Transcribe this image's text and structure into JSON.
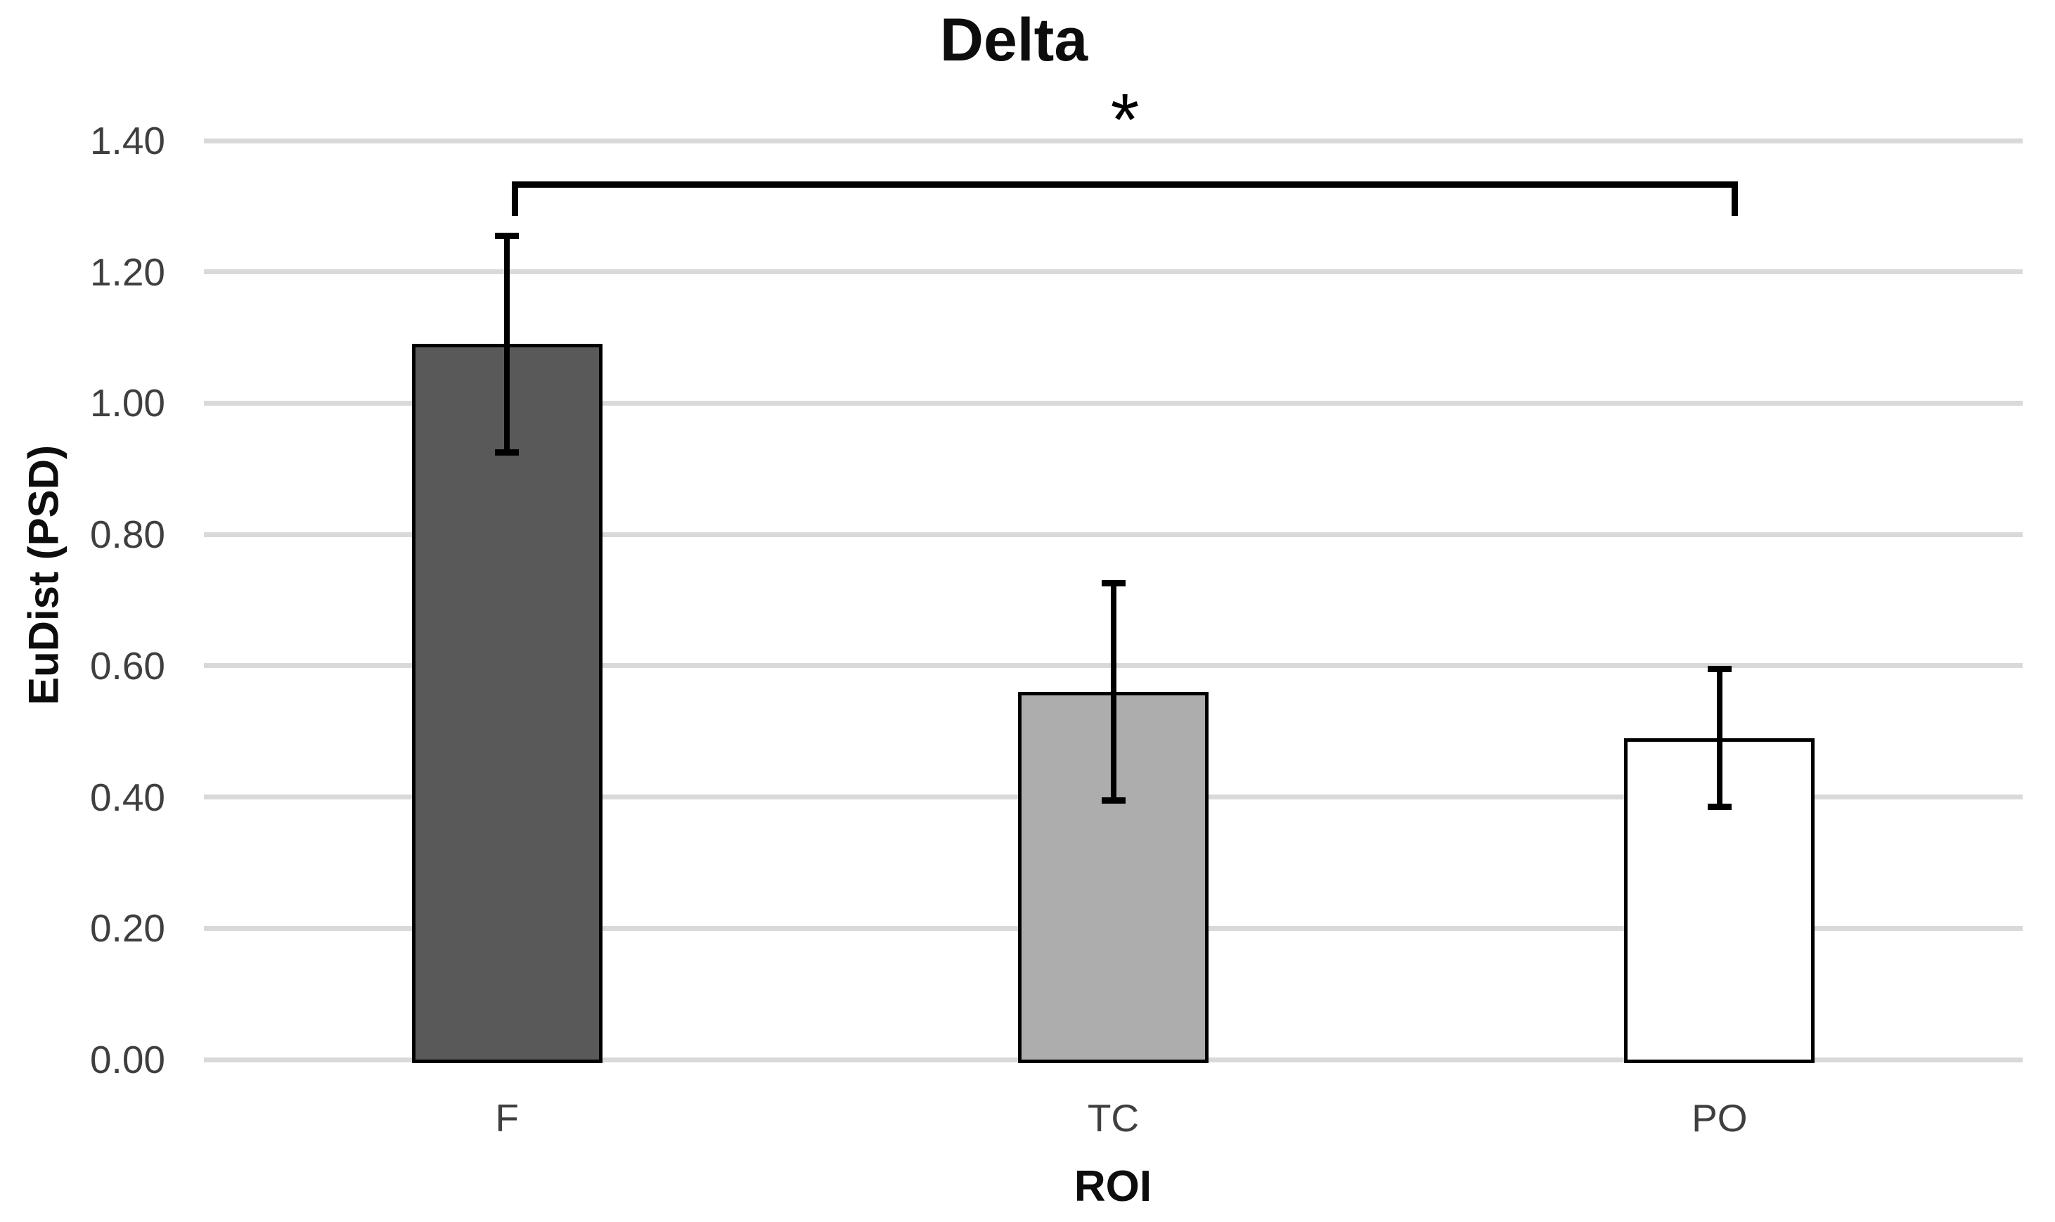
{
  "chart_data": {
    "type": "bar",
    "title": "Delta",
    "xlabel": "ROI",
    "ylabel": "EuDist (PSD)",
    "categories": [
      "F",
      "TC",
      "PO"
    ],
    "values": [
      1.09,
      0.56,
      0.49
    ],
    "error_plus": [
      0.17,
      0.17,
      0.11
    ],
    "error_minus": [
      0.17,
      0.17,
      0.11
    ],
    "bar_colors": [
      "#595959",
      "#ADADAD",
      "#FFFFFF"
    ],
    "bar_border_color": "#000000",
    "ylim": [
      0.0,
      1.4
    ],
    "ytick_step": 0.2,
    "ytick_labels": [
      "0.00",
      "0.20",
      "0.40",
      "0.60",
      "0.80",
      "1.00",
      "1.20",
      "1.40"
    ],
    "grid": true,
    "gridline_color": "#D9D9D9",
    "legend": "none",
    "significance": {
      "from": "F",
      "to": "PO",
      "label": "*"
    }
  }
}
